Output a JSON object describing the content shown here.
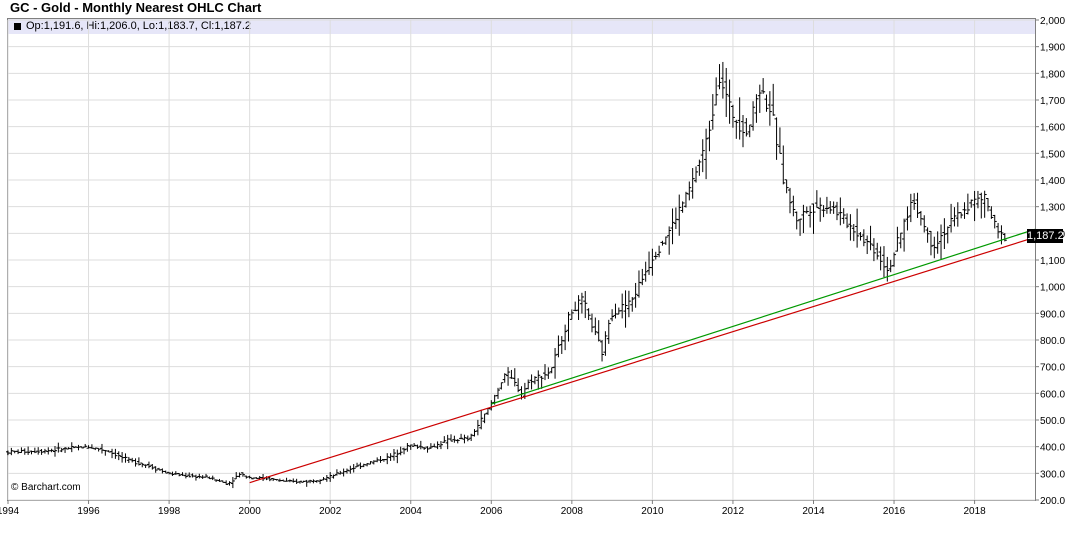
{
  "chart_data": {
    "type": "ohlc",
    "title": "GC - Gold - Monthly Nearest OHLC Chart",
    "legend": {
      "text": "Op:1,191.6, Hi:1,206.0, Lo:1,183.7, Cl:1,187.2",
      "placement": "top-left"
    },
    "credit": "© Barchart.com",
    "last_value_label": "1,187.2",
    "x_axis": {
      "range": [
        1994.0,
        2019.5
      ],
      "ticks": [
        "1994",
        "1996",
        "1998",
        "2000",
        "2002",
        "2004",
        "2006",
        "2008",
        "2010",
        "2012",
        "2014",
        "2016",
        "2018"
      ]
    },
    "y_axis": {
      "position": "right",
      "range": [
        200,
        2000
      ],
      "ticks": [
        "200.0",
        "300.0",
        "400.0",
        "500.0",
        "600.0",
        "700.0",
        "800.0",
        "900.0",
        "1,000.0",
        "1,100.0",
        "1,200.0",
        "1,300.0",
        "1,400.0",
        "1,500.0",
        "1,600.0",
        "1,700.0",
        "1,800.0",
        "1,900.0",
        "2,000.0"
      ]
    },
    "grid": true,
    "price_path": [
      [
        1994.0,
        380
      ],
      [
        1995.0,
        385
      ],
      [
        1996.0,
        400
      ],
      [
        1996.5,
        385
      ],
      [
        1997.0,
        350
      ],
      [
        1997.5,
        330
      ],
      [
        1998.0,
        300
      ],
      [
        1998.5,
        290
      ],
      [
        1999.0,
        285
      ],
      [
        1999.5,
        260
      ],
      [
        1999.8,
        300
      ],
      [
        2000.0,
        285
      ],
      [
        2000.5,
        280
      ],
      [
        2001.0,
        268
      ],
      [
        2001.5,
        270
      ],
      [
        2002.0,
        285
      ],
      [
        2002.5,
        315
      ],
      [
        2003.0,
        340
      ],
      [
        2003.5,
        360
      ],
      [
        2004.0,
        405
      ],
      [
        2004.5,
        395
      ],
      [
        2005.0,
        425
      ],
      [
        2005.5,
        430
      ],
      [
        2006.0,
        550
      ],
      [
        2006.4,
        680
      ],
      [
        2006.8,
        600
      ],
      [
        2007.0,
        650
      ],
      [
        2007.5,
        680
      ],
      [
        2008.0,
        900
      ],
      [
        2008.3,
        950
      ],
      [
        2008.8,
        750
      ],
      [
        2009.0,
        900
      ],
      [
        2009.5,
        940
      ],
      [
        2010.0,
        1100
      ],
      [
        2010.5,
        1220
      ],
      [
        2011.0,
        1380
      ],
      [
        2011.4,
        1550
      ],
      [
        2011.7,
        1800
      ],
      [
        2012.0,
        1650
      ],
      [
        2012.4,
        1580
      ],
      [
        2012.7,
        1750
      ],
      [
        2013.0,
        1650
      ],
      [
        2013.3,
        1400
      ],
      [
        2013.6,
        1250
      ],
      [
        2014.0,
        1300
      ],
      [
        2014.5,
        1300
      ],
      [
        2015.0,
        1220
      ],
      [
        2015.5,
        1150
      ],
      [
        2015.9,
        1060
      ],
      [
        2016.5,
        1330
      ],
      [
        2017.0,
        1150
      ],
      [
        2017.5,
        1250
      ],
      [
        2018.0,
        1320
      ],
      [
        2018.3,
        1330
      ],
      [
        2018.6,
        1200
      ],
      [
        2018.8,
        1187
      ]
    ],
    "trendlines": [
      {
        "color": "#cc0000",
        "from": [
          2000.0,
          265
        ],
        "to": [
          2019.5,
          1185
        ]
      },
      {
        "color": "#009900",
        "from": [
          2006.0,
          560
        ],
        "to": [
          2019.5,
          1215
        ]
      }
    ]
  }
}
